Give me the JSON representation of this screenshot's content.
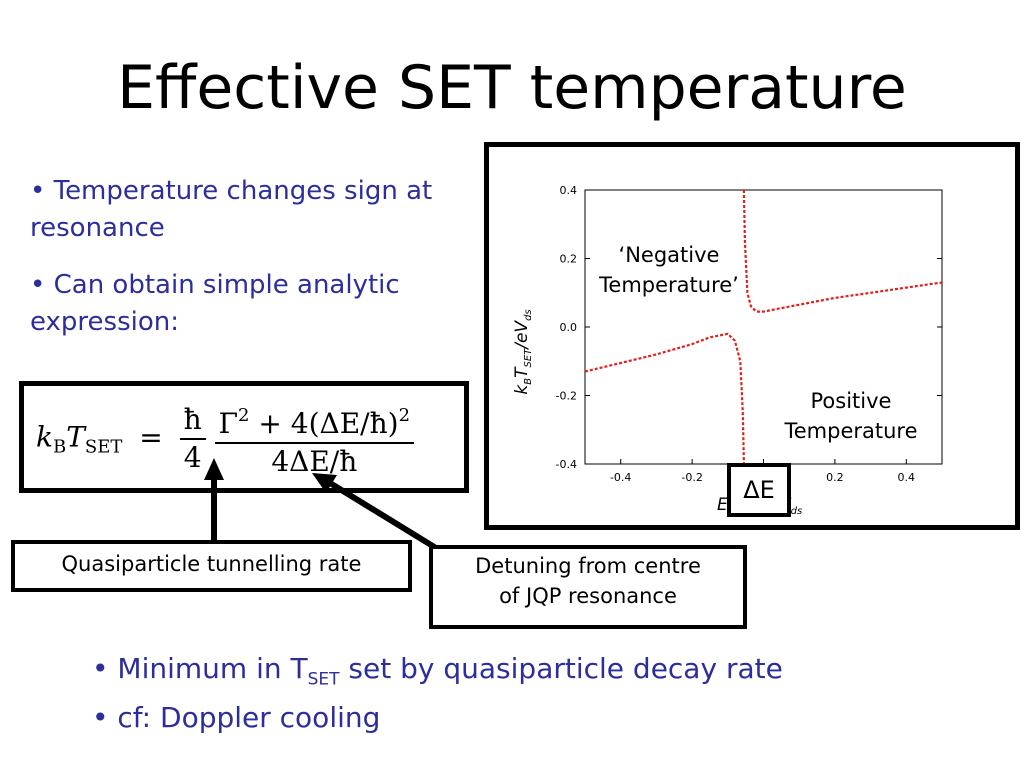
{
  "slide": {
    "title": "Effective SET temperature",
    "bullets_left": [
      "• Temperature changes sign at resonance",
      "• Can obtain simple analytic expression:"
    ],
    "equation": {
      "lhs": "k",
      "lhs_sub": "B",
      "lhs_T": "T",
      "lhs_T_sub": "SET",
      "eq_sign": "=",
      "frac1_num": "ħ",
      "frac1_den": "4",
      "frac2_num_a": "Γ",
      "frac2_num_a_sup": "2",
      "frac2_num_b": " + 4(ΔE/ħ)",
      "frac2_num_b_sup": "2",
      "frac2_den": "4ΔE/ħ"
    },
    "callout_gamma": "Quasiparticle tunnelling rate",
    "callout_detuning_line1": "Detuning from centre",
    "callout_detuning_line2": "of JQP resonance",
    "bottom_bullets": {
      "line1_pre": "• Minimum in T",
      "line1_sub": "SET",
      "line1_post": " set by quasiparticle decay rate",
      "line2": "• cf: Doppler cooling"
    },
    "delta_e_label": "ΔE"
  },
  "chart_data": {
    "type": "line",
    "title": "",
    "ylabel": "k_B T_SET / eV_ds",
    "xlabel": "E / eV_ds",
    "xlim": [
      -0.5,
      0.5
    ],
    "ylim": [
      -0.4,
      0.4
    ],
    "x_ticks": [
      -0.4,
      -0.2,
      0.0,
      0.2,
      0.4
    ],
    "x_tick_labels": [
      "-0.4",
      "-0.2",
      "0.0",
      "0.2",
      "0.4"
    ],
    "y_ticks": [
      -0.4,
      -0.2,
      0.0,
      0.2,
      0.4
    ],
    "y_tick_labels": [
      "-0.4",
      "-0.2",
      "0.0",
      "0.2",
      "0.4"
    ],
    "series": [
      {
        "name": "T_SET",
        "color": "#e0201a",
        "style": "dotted",
        "model": "y = (g*g + 4*x*x) / (4*x) shifted to resonance at x0",
        "x0": -0.05,
        "gamma": 0.0,
        "points_left": [
          [
            -0.5,
            -0.13
          ],
          [
            -0.4,
            -0.105
          ],
          [
            -0.3,
            -0.08
          ],
          [
            -0.2,
            -0.05
          ],
          [
            -0.15,
            -0.03
          ],
          [
            -0.1,
            -0.02
          ],
          [
            -0.08,
            -0.04
          ],
          [
            -0.065,
            -0.1
          ],
          [
            -0.058,
            -0.25
          ],
          [
            -0.055,
            -0.4
          ]
        ],
        "points_right": [
          [
            -0.055,
            0.4
          ],
          [
            -0.052,
            0.25
          ],
          [
            -0.045,
            0.1
          ],
          [
            -0.035,
            0.06
          ],
          [
            -0.02,
            0.045
          ],
          [
            0.0,
            0.045
          ],
          [
            0.1,
            0.065
          ],
          [
            0.2,
            0.085
          ],
          [
            0.3,
            0.1
          ],
          [
            0.4,
            0.115
          ],
          [
            0.5,
            0.13
          ]
        ]
      }
    ],
    "annotations": [
      {
        "text": "‘Negative",
        "text2": "Temperature’"
      },
      {
        "text": "Positive",
        "text2": "Temperature"
      }
    ]
  }
}
